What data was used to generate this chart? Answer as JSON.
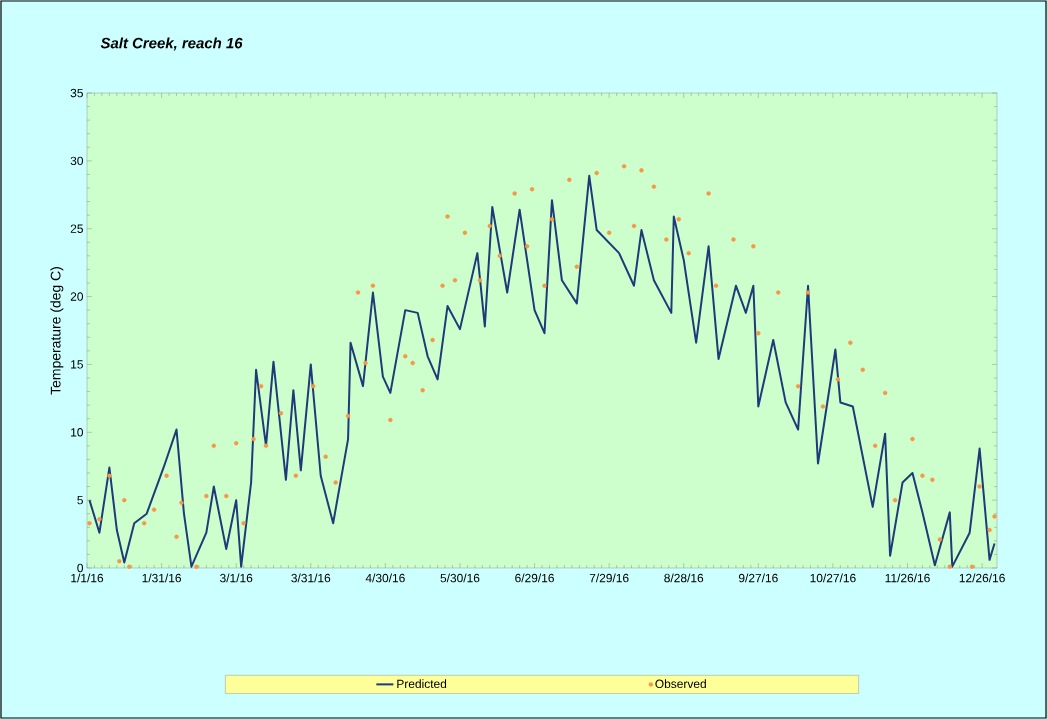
{
  "chart_data": {
    "type": "line",
    "title": "Salt Creek, reach 16",
    "ylabel": "Temperature (deg C)",
    "xlim": [
      "2016-01-01",
      "2017-01-01"
    ],
    "ylim": [
      0,
      35
    ],
    "yticks": [
      0,
      5,
      10,
      15,
      20,
      25,
      30,
      35
    ],
    "xticks": [
      {
        "value": "2016-01-01",
        "label": "1/1/16"
      },
      {
        "value": "2016-01-31",
        "label": "1/31/16"
      },
      {
        "value": "2016-03-01",
        "label": "3/1/16"
      },
      {
        "value": "2016-03-31",
        "label": "3/31/16"
      },
      {
        "value": "2016-04-30",
        "label": "4/30/16"
      },
      {
        "value": "2016-05-30",
        "label": "5/30/16"
      },
      {
        "value": "2016-06-29",
        "label": "6/29/16"
      },
      {
        "value": "2016-07-29",
        "label": "7/29/16"
      },
      {
        "value": "2016-08-28",
        "label": "8/28/16"
      },
      {
        "value": "2016-09-27",
        "label": "9/27/16"
      },
      {
        "value": "2016-10-27",
        "label": "10/27/16"
      },
      {
        "value": "2016-11-26",
        "label": "11/26/16"
      },
      {
        "value": "2016-12-26",
        "label": "12/26/16"
      }
    ],
    "legend": "bottom",
    "series": [
      {
        "name": "Predicted",
        "marker": "none",
        "color": "#1f3a78",
        "x": [
          "2016-01-02",
          "2016-01-06",
          "2016-01-10",
          "2016-01-13",
          "2016-01-16",
          "2016-01-20",
          "2016-01-25",
          "2016-02-01",
          "2016-02-06",
          "2016-02-09",
          "2016-02-12",
          "2016-02-18",
          "2016-02-21",
          "2016-02-26",
          "2016-03-01",
          "2016-03-03",
          "2016-03-07",
          "2016-03-09",
          "2016-03-13",
          "2016-03-16",
          "2016-03-21",
          "2016-03-24",
          "2016-03-27",
          "2016-03-31",
          "2016-04-04",
          "2016-04-09",
          "2016-04-15",
          "2016-04-16",
          "2016-04-21",
          "2016-04-25",
          "2016-04-29",
          "2016-05-02",
          "2016-05-08",
          "2016-05-13",
          "2016-05-17",
          "2016-05-21",
          "2016-05-25",
          "2016-05-30",
          "2016-06-06",
          "2016-06-09",
          "2016-06-12",
          "2016-06-18",
          "2016-06-23",
          "2016-06-29",
          "2016-07-03",
          "2016-07-06",
          "2016-07-10",
          "2016-07-16",
          "2016-07-21",
          "2016-07-24",
          "2016-08-02",
          "2016-08-08",
          "2016-08-11",
          "2016-08-16",
          "2016-08-23",
          "2016-08-24",
          "2016-08-28",
          "2016-09-02",
          "2016-09-07",
          "2016-09-11",
          "2016-09-18",
          "2016-09-22",
          "2016-09-25",
          "2016-09-27",
          "2016-10-03",
          "2016-10-08",
          "2016-10-13",
          "2016-10-17",
          "2016-10-21",
          "2016-10-28",
          "2016-10-30",
          "2016-11-04",
          "2016-11-12",
          "2016-11-17",
          "2016-11-19",
          "2016-11-24",
          "2016-11-28",
          "2016-12-02",
          "2016-12-07",
          "2016-12-13",
          "2016-12-14",
          "2016-12-21",
          "2016-12-25",
          "2016-12-29",
          "2016-12-31"
        ],
        "values": [
          5.0,
          2.6,
          7.4,
          2.8,
          0.4,
          3.3,
          4.0,
          7.5,
          10.2,
          4.0,
          0.1,
          2.6,
          6.0,
          1.4,
          5.0,
          0.1,
          6.3,
          14.6,
          9.0,
          15.2,
          6.5,
          13.1,
          7.2,
          15.0,
          6.8,
          3.3,
          9.5,
          16.6,
          13.4,
          20.3,
          14.1,
          12.9,
          19.0,
          18.8,
          15.6,
          13.9,
          19.3,
          17.6,
          23.2,
          17.8,
          26.6,
          20.3,
          26.4,
          19.0,
          17.3,
          27.1,
          21.2,
          19.5,
          28.9,
          24.9,
          23.2,
          20.8,
          24.9,
          21.2,
          18.8,
          25.9,
          22.7,
          16.6,
          23.7,
          15.4,
          20.8,
          18.8,
          20.8,
          11.9,
          16.8,
          12.2,
          10.2,
          20.8,
          7.7,
          16.1,
          12.2,
          11.9,
          4.5,
          9.9,
          0.9,
          6.3,
          7.0,
          4.1,
          0.2,
          4.1,
          0.1,
          2.6,
          8.8,
          0.6,
          1.8
        ]
      },
      {
        "name": "Observed",
        "type": "scatter",
        "marker": "circle",
        "color": "#f79646",
        "x": [
          "2016-01-02",
          "2016-01-06",
          "2016-01-10",
          "2016-01-14",
          "2016-01-16",
          "2016-01-18",
          "2016-01-24",
          "2016-01-28",
          "2016-02-02",
          "2016-02-06",
          "2016-02-08",
          "2016-02-14",
          "2016-02-18",
          "2016-02-21",
          "2016-02-26",
          "2016-03-01",
          "2016-03-04",
          "2016-03-08",
          "2016-03-11",
          "2016-03-13",
          "2016-03-19",
          "2016-03-25",
          "2016-04-01",
          "2016-04-06",
          "2016-04-10",
          "2016-04-15",
          "2016-04-19",
          "2016-04-22",
          "2016-04-25",
          "2016-05-02",
          "2016-05-08",
          "2016-05-11",
          "2016-05-15",
          "2016-05-19",
          "2016-05-23",
          "2016-05-25",
          "2016-05-28",
          "2016-06-01",
          "2016-06-07",
          "2016-06-11",
          "2016-06-15",
          "2016-06-21",
          "2016-06-26",
          "2016-06-28",
          "2016-07-03",
          "2016-07-06",
          "2016-07-13",
          "2016-07-16",
          "2016-07-24",
          "2016-07-29",
          "2016-08-04",
          "2016-08-08",
          "2016-08-11",
          "2016-08-16",
          "2016-08-21",
          "2016-08-26",
          "2016-08-30",
          "2016-09-07",
          "2016-09-10",
          "2016-09-17",
          "2016-09-25",
          "2016-09-27",
          "2016-10-05",
          "2016-10-13",
          "2016-10-17",
          "2016-10-23",
          "2016-10-29",
          "2016-11-03",
          "2016-11-08",
          "2016-11-13",
          "2016-11-17",
          "2016-11-21",
          "2016-11-28",
          "2016-12-02",
          "2016-12-06",
          "2016-12-09",
          "2016-12-13",
          "2016-12-22",
          "2016-12-25",
          "2016-12-29",
          "2016-12-31"
        ],
        "values": [
          3.3,
          3.6,
          6.8,
          0.5,
          5.0,
          0.1,
          3.3,
          4.3,
          6.8,
          2.3,
          4.8,
          0.1,
          5.3,
          9.0,
          5.3,
          9.2,
          3.3,
          9.5,
          13.4,
          9.0,
          11.4,
          6.8,
          13.4,
          8.2,
          6.3,
          11.2,
          20.3,
          15.1,
          20.8,
          10.9,
          15.6,
          15.1,
          13.1,
          16.8,
          20.8,
          25.9,
          21.2,
          24.7,
          21.2,
          25.2,
          23.0,
          27.6,
          23.7,
          27.9,
          20.8,
          25.7,
          28.6,
          22.2,
          29.1,
          24.7,
          29.6,
          25.2,
          29.3,
          28.1,
          24.2,
          25.7,
          23.2,
          27.6,
          20.8,
          24.2,
          23.7,
          17.3,
          20.3,
          13.4,
          20.3,
          11.9,
          13.9,
          16.6,
          14.6,
          9.0,
          12.9,
          5.0,
          9.5,
          6.8,
          6.5,
          2.1,
          0.1,
          0.1,
          6.0,
          2.8,
          3.8
        ]
      }
    ]
  }
}
